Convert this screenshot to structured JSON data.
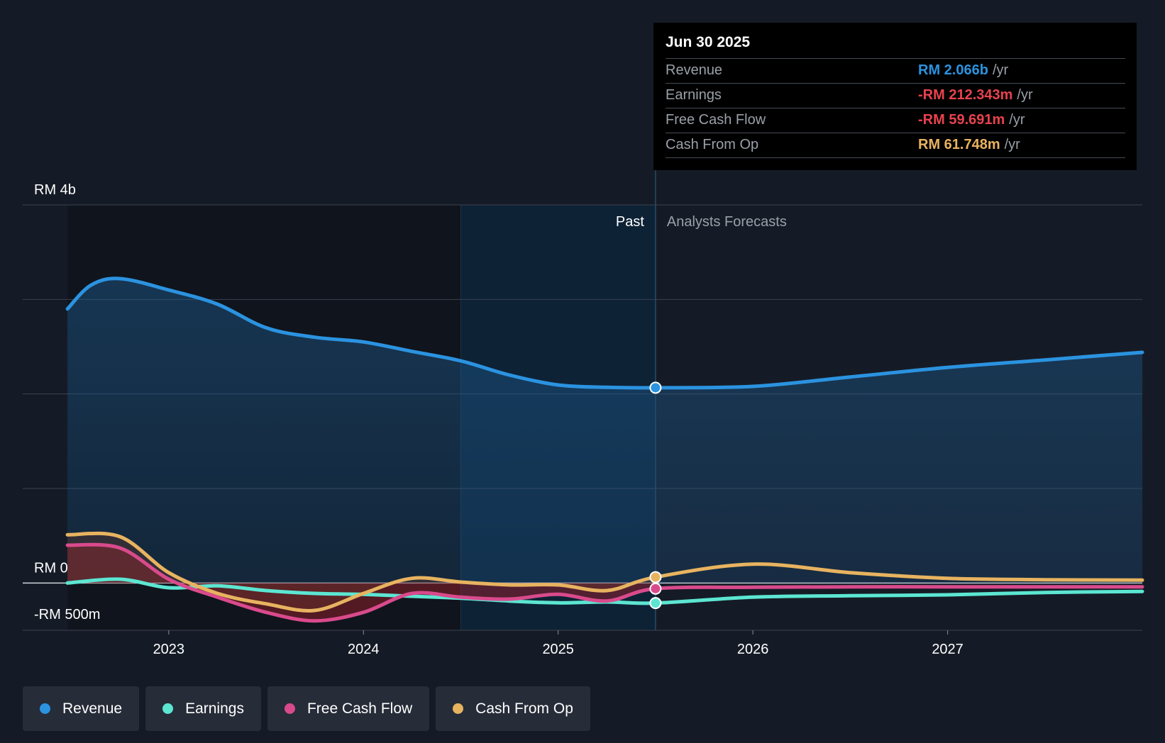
{
  "chart_data": {
    "type": "line",
    "title": "",
    "xlabel": "",
    "ylabel": "",
    "unit_prefix": "RM",
    "ylim": [
      -500,
      4000
    ],
    "y_tick_labels": [
      {
        "value": 4000,
        "label": "RM 4b"
      },
      {
        "value": 0,
        "label": "RM 0"
      },
      {
        "value": -500,
        "label": "-RM 500m"
      }
    ],
    "y_gridlines": [
      4000,
      3000,
      2000,
      1000,
      0,
      -500
    ],
    "x_ticks": [
      {
        "year": 2023,
        "label": "2023"
      },
      {
        "year": 2024,
        "label": "2024"
      },
      {
        "year": 2025,
        "label": "2025"
      },
      {
        "year": 2026,
        "label": "2026"
      },
      {
        "year": 2027,
        "label": "2027"
      }
    ],
    "xlim": [
      2022.25,
      2028.0
    ],
    "past_label": "Past",
    "forecast_label": "Analysts Forecasts",
    "shade_start": 2024.5,
    "divider_x": 2025.5,
    "series": [
      {
        "name": "Revenue",
        "color": "#2b93e0",
        "fill": true,
        "points": [
          [
            2022.48,
            2900
          ],
          [
            2022.6,
            3150
          ],
          [
            2022.75,
            3220
          ],
          [
            2023.0,
            3100
          ],
          [
            2023.25,
            2950
          ],
          [
            2023.5,
            2700
          ],
          [
            2023.75,
            2600
          ],
          [
            2024.0,
            2550
          ],
          [
            2024.25,
            2450
          ],
          [
            2024.5,
            2350
          ],
          [
            2024.75,
            2200
          ],
          [
            2025.0,
            2095
          ],
          [
            2025.25,
            2070
          ],
          [
            2025.5,
            2066
          ],
          [
            2026.0,
            2080
          ],
          [
            2026.5,
            2180
          ],
          [
            2027.0,
            2280
          ],
          [
            2027.5,
            2360
          ],
          [
            2028.0,
            2440
          ]
        ],
        "marker_at": 2025.5
      },
      {
        "name": "Earnings",
        "color": "#5ce6d2",
        "fill": false,
        "points": [
          [
            2022.48,
            0
          ],
          [
            2022.75,
            40
          ],
          [
            2023.0,
            -50
          ],
          [
            2023.25,
            -30
          ],
          [
            2023.5,
            -80
          ],
          [
            2023.75,
            -110
          ],
          [
            2024.0,
            -120
          ],
          [
            2024.25,
            -140
          ],
          [
            2024.5,
            -160
          ],
          [
            2024.75,
            -190
          ],
          [
            2025.0,
            -210
          ],
          [
            2025.25,
            -200
          ],
          [
            2025.5,
            -212
          ],
          [
            2026.0,
            -150
          ],
          [
            2026.5,
            -135
          ],
          [
            2027.0,
            -125
          ],
          [
            2027.5,
            -100
          ],
          [
            2028.0,
            -90
          ]
        ],
        "marker_at": 2025.5
      },
      {
        "name": "Free Cash Flow",
        "color": "#d94a8c",
        "fill": true,
        "points": [
          [
            2022.48,
            400
          ],
          [
            2022.75,
            370
          ],
          [
            2023.0,
            40
          ],
          [
            2023.25,
            -150
          ],
          [
            2023.5,
            -310
          ],
          [
            2023.75,
            -400
          ],
          [
            2024.0,
            -310
          ],
          [
            2024.25,
            -110
          ],
          [
            2024.5,
            -150
          ],
          [
            2024.75,
            -170
          ],
          [
            2025.0,
            -120
          ],
          [
            2025.25,
            -190
          ],
          [
            2025.5,
            -60
          ],
          [
            2026.0,
            -45
          ],
          [
            2026.5,
            -40
          ],
          [
            2027.0,
            -40
          ],
          [
            2027.5,
            -40
          ],
          [
            2028.0,
            -40
          ]
        ],
        "marker_at": 2025.5
      },
      {
        "name": "Cash From Op",
        "color": "#e8b360",
        "fill": true,
        "points": [
          [
            2022.48,
            510
          ],
          [
            2022.75,
            490
          ],
          [
            2023.0,
            110
          ],
          [
            2023.25,
            -110
          ],
          [
            2023.5,
            -220
          ],
          [
            2023.75,
            -290
          ],
          [
            2024.0,
            -110
          ],
          [
            2024.25,
            50
          ],
          [
            2024.5,
            10
          ],
          [
            2024.75,
            -20
          ],
          [
            2025.0,
            -20
          ],
          [
            2025.25,
            -80
          ],
          [
            2025.5,
            62
          ],
          [
            2026.0,
            200
          ],
          [
            2026.5,
            110
          ],
          [
            2027.0,
            50
          ],
          [
            2027.5,
            35
          ],
          [
            2028.0,
            30
          ]
        ],
        "marker_at": 2025.5
      }
    ]
  },
  "tooltip": {
    "date": "Jun 30 2025",
    "rows": [
      {
        "label": "Revenue",
        "value": "RM 2.066b",
        "unit": "/yr",
        "color": "#2b93e0"
      },
      {
        "label": "Earnings",
        "value": "-RM 212.343m",
        "unit": "/yr",
        "color": "#e8434e"
      },
      {
        "label": "Free Cash Flow",
        "value": "-RM 59.691m",
        "unit": "/yr",
        "color": "#e8434e"
      },
      {
        "label": "Cash From Op",
        "value": "RM 61.748m",
        "unit": "/yr",
        "color": "#e8b360"
      }
    ]
  },
  "legend": [
    {
      "label": "Revenue",
      "color": "#2b93e0"
    },
    {
      "label": "Earnings",
      "color": "#5ce6d2"
    },
    {
      "label": "Free Cash Flow",
      "color": "#d94a8c"
    },
    {
      "label": "Cash From Op",
      "color": "#e8b360"
    }
  ]
}
